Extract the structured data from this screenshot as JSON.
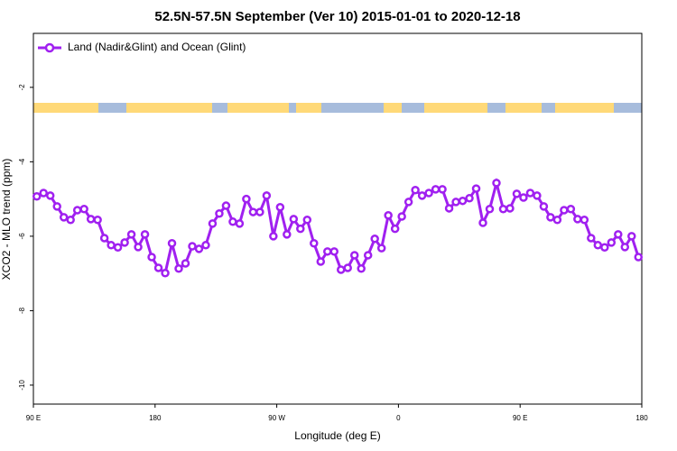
{
  "chart_data": {
    "type": "line",
    "title": "52.5N-57.5N September (Ver 10)   2015-01-01 to 2020-12-18",
    "x_label": "Longitude (deg E)",
    "y_label": "XCO2 - MLO trend (ppm)",
    "x": [
      92.5,
      97.5,
      102.5,
      107.5,
      112.5,
      117.5,
      122.5,
      127.5,
      132.5,
      137.5,
      142.5,
      147.5,
      152.5,
      157.5,
      162.5,
      167.5,
      172.5,
      177.5,
      182.5,
      187.5,
      192.5,
      197.5,
      202.5,
      207.5,
      212.5,
      217.5,
      222.5,
      227.5,
      232.5,
      237.5,
      242.5,
      247.5,
      252.5,
      257.5,
      262.5,
      267.5,
      272.5,
      277.5,
      282.5,
      287.5,
      292.5,
      297.5,
      302.5,
      307.5,
      312.5,
      317.5,
      322.5,
      327.5,
      332.5,
      337.5,
      342.5,
      347.5,
      352.5,
      357.5,
      362.5,
      367.5,
      372.5,
      377.5,
      382.5,
      387.5,
      392.5,
      397.5,
      402.5,
      407.5,
      412.5,
      417.5,
      422.5,
      427.5,
      432.5,
      437.5,
      442.5,
      447.5,
      452.5,
      457.5,
      462.5,
      467.5,
      472.5,
      477.5,
      482.5,
      487.5,
      492.5,
      497.5,
      502.5,
      507.5,
      512.5,
      517.5,
      522.5,
      527.5,
      532.5,
      537.5
    ],
    "series": [
      {
        "name": "Land (Nadir&Glint) and Ocean (Glint)",
        "color": "#a020f0",
        "values": [
          -4.93,
          -4.84,
          -4.91,
          -5.2,
          -5.49,
          -5.56,
          -5.3,
          -5.27,
          -5.54,
          -5.56,
          -6.05,
          -6.24,
          -6.3,
          -6.17,
          -5.95,
          -6.29,
          -5.95,
          -6.56,
          -6.85,
          -6.99,
          -6.19,
          -6.87,
          -6.73,
          -6.27,
          -6.34,
          -6.24,
          -5.66,
          -5.39,
          -5.18,
          -5.61,
          -5.66,
          -5.0,
          -5.35,
          -5.35,
          -4.91,
          -6.0,
          -5.22,
          -5.95,
          -5.54,
          -5.8,
          -5.56,
          -6.19,
          -6.68,
          -6.41,
          -6.41,
          -6.9,
          -6.85,
          -6.51,
          -6.87,
          -6.51,
          -6.07,
          -6.32,
          -5.44,
          -5.8,
          -5.47,
          -5.08,
          -4.76,
          -4.91,
          -4.84,
          -4.74,
          -4.74,
          -5.25,
          -5.08,
          -5.05,
          -4.98,
          -4.72,
          -5.64,
          -5.27,
          -4.57,
          -5.27,
          -5.25,
          -4.86,
          -4.96,
          -4.84,
          -4.91,
          -5.2,
          -5.49,
          -5.56,
          -5.3,
          -5.27,
          -5.54,
          -5.56,
          -6.05,
          -6.24,
          -6.3,
          -6.17,
          -5.95,
          -6.29,
          -6.0,
          -6.56
        ]
      }
    ],
    "xlim": [
      90,
      540
    ],
    "xticks": [
      {
        "value": 90,
        "label": "90 E"
      },
      180,
      {
        "value": 270,
        "label": "90 W"
      },
      {
        "value": 360,
        "label": "0"
      },
      {
        "value": 450,
        "label": "90 E"
      },
      {
        "value": 540,
        "label": "180"
      }
    ],
    "ylim": [
      -10.51,
      -0.55
    ],
    "yticks": [
      -2,
      -4,
      -6,
      -8,
      -10
    ],
    "legend": "top-left"
  }
}
